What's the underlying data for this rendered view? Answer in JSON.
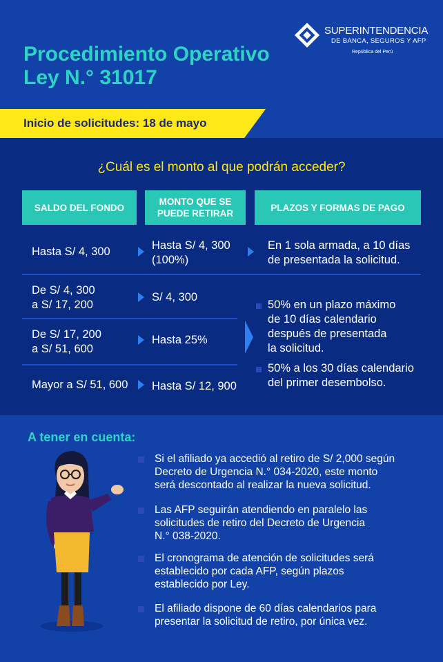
{
  "logo": {
    "name": "SUPERINTENDENCIA",
    "subtitle": "DE BANCA, SEGUROS Y AFP",
    "country": "República del Perú"
  },
  "title": {
    "line1": "Procedimiento Operativo",
    "line2": "Ley N.° 31017"
  },
  "banner": "Inicio de solicitudes: 18 de mayo",
  "question": "¿Cuál es el monto al que podrán acceder?",
  "table": {
    "headers": [
      "SALDO DEL FONDO",
      "MONTO QUE SE PUEDE RETIRAR",
      "PLAZOS Y FORMAS  DE PAGO"
    ],
    "rows": [
      {
        "saldo": [
          "Hasta S/ 4, 300"
        ],
        "monto": [
          "Hasta S/ 4, 300",
          "(100%)"
        ],
        "plazo": [
          "En 1 sola armada, a 10 días",
          "de presentada la solicitud."
        ]
      },
      {
        "saldo": [
          "De S/ 4, 300",
          "a S/ 17, 200"
        ],
        "monto": [
          "S/ 4, 300"
        ]
      },
      {
        "saldo": [
          "De S/ 17, 200",
          "a S/ 51, 600"
        ],
        "monto": [
          "Hasta 25%"
        ]
      },
      {
        "saldo": [
          "Mayor a S/ 51, 600"
        ],
        "monto": [
          "Hasta S/ 12, 900"
        ]
      }
    ],
    "shared_plazo": [
      [
        "50% en un plazo máximo",
        "de 10 días calendario",
        "después de presentada",
        "la solicitud."
      ],
      [
        "50% a los 30 días calendario",
        "del primer desembolso."
      ]
    ]
  },
  "notes": {
    "title": "A tener en cuenta:",
    "items": [
      [
        "Si el afiliado ya accedió al retiro de S/ 2,000 según",
        "Decreto de Urgencia N.° 034-2020, este monto",
        "será descontado al realizar la nueva solicitud."
      ],
      [
        "Las AFP seguirán atendiendo en paralelo las",
        "solicitudes de retiro del Decreto de Urgencia",
        "N.° 038-2020."
      ],
      [
        "El cronograma de atención de solicitudes será",
        "establecido por cada AFP, según plazos",
        "establecido por Ley."
      ],
      [
        "El afiliado dispone de 60 días calendarios para",
        "presentar la solicitud de retiro, por única vez."
      ]
    ]
  },
  "colors": {
    "background": "#103a9a",
    "title": "#2ed3c6",
    "banner": "#ffe817",
    "header_cells": "#2ac7b7",
    "arrows": "#2f7ff0"
  },
  "icons": [
    "sbs-logo-icon",
    "arrow-right-icon",
    "bullet-square-icon",
    "woman-illustration"
  ]
}
